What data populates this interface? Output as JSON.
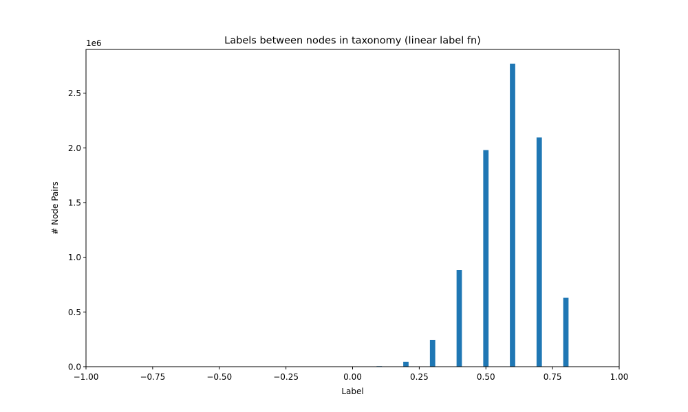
{
  "chart_data": {
    "type": "bar",
    "title": "Labels between nodes in taxonomy (linear label fn)",
    "xlabel": "Label",
    "ylabel": "# Node Pairs",
    "y_offset_text": "1e6",
    "xlim": [
      -1.0,
      1.0
    ],
    "ylim": [
      0,
      2.9
    ],
    "x_ticks": [
      -1.0,
      -0.75,
      -0.5,
      -0.25,
      0.0,
      0.25,
      0.5,
      0.75,
      1.0
    ],
    "x_tick_labels": [
      "−1.00",
      "−0.75",
      "−0.50",
      "−0.25",
      "0.00",
      "0.25",
      "0.50",
      "0.75",
      "1.00"
    ],
    "y_ticks": [
      0.0,
      0.5,
      1.0,
      1.5,
      2.0,
      2.5
    ],
    "y_tick_labels": [
      "0.0",
      "0.5",
      "1.0",
      "1.5",
      "2.0",
      "2.5"
    ],
    "bar_color": "#1f77b4",
    "bar_width": 0.02,
    "x": [
      0.1,
      0.2,
      0.3,
      0.4,
      0.5,
      0.6,
      0.7,
      0.8
    ],
    "values": [
      0.005,
      0.045,
      0.245,
      0.885,
      1.98,
      2.77,
      2.095,
      0.63
    ],
    "grid": false,
    "legend": "none"
  }
}
